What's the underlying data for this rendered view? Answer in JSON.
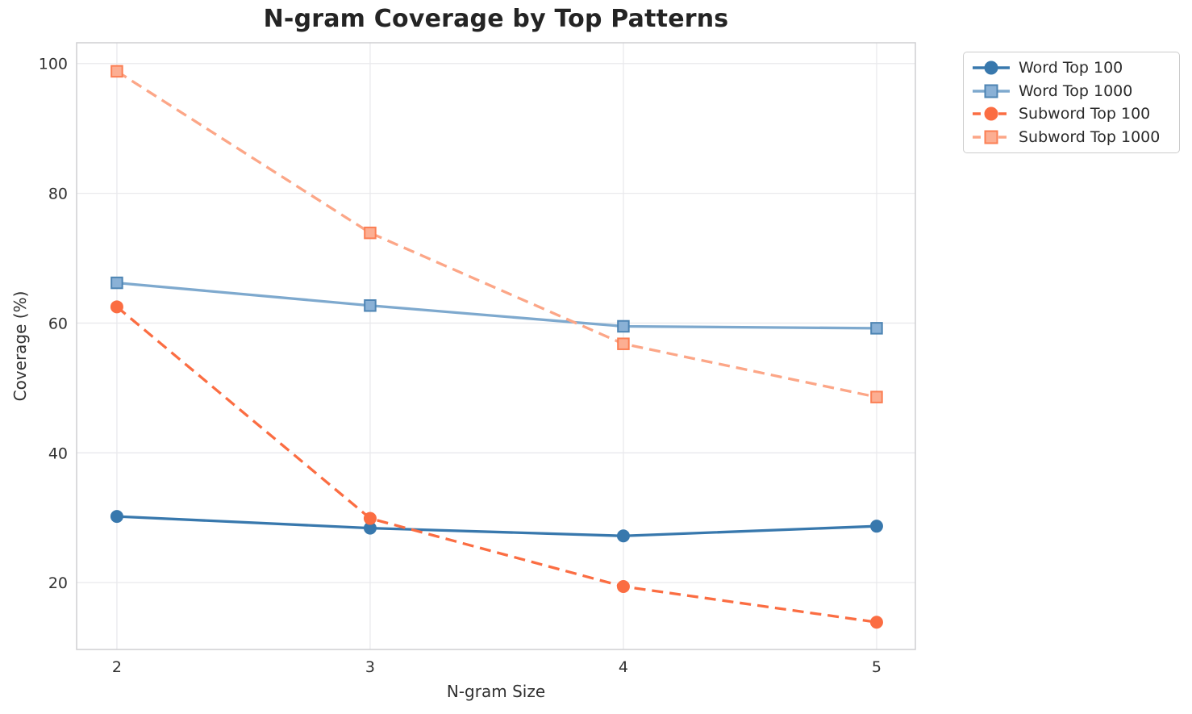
{
  "chart_data": {
    "type": "line",
    "title": "N-gram Coverage by Top Patterns",
    "xlabel": "N-gram Size",
    "ylabel": "Coverage (%)",
    "x": [
      2,
      3,
      4,
      5
    ],
    "x_tick_labels": [
      "2",
      "3",
      "4",
      "5"
    ],
    "y_ticks": [
      20,
      40,
      60,
      80,
      100
    ],
    "y_tick_labels": [
      "20",
      "40",
      "60",
      "80",
      "100"
    ],
    "xlim": [
      1.841,
      5.153
    ],
    "ylim": [
      9.7,
      103.2
    ],
    "grid": true,
    "legend_position": "outside-top-right",
    "series": [
      {
        "name": "Word Top 100",
        "values": [
          30.2,
          28.4,
          27.2,
          28.7
        ],
        "color": "#3878ad",
        "marker": "circle",
        "marker_fill": "#3878ad",
        "marker_edge": "#3878ad",
        "line_style": "solid"
      },
      {
        "name": "Word Top 1000",
        "values": [
          66.2,
          62.7,
          59.5,
          59.2
        ],
        "color": "#7ea9ce",
        "marker": "square",
        "marker_fill": "#8ab1d6",
        "marker_edge": "#4d84b3",
        "line_style": "solid"
      },
      {
        "name": "Subword Top 100",
        "values": [
          62.5,
          29.9,
          19.4,
          13.9
        ],
        "color": "#fb6d42",
        "marker": "circle",
        "marker_fill": "#fb6d42",
        "marker_edge": "#fb6d42",
        "line_style": "dashed"
      },
      {
        "name": "Subword Top 1000",
        "values": [
          98.8,
          73.9,
          56.8,
          48.6
        ],
        "color": "#fca687",
        "marker": "square",
        "marker_fill": "#fcae92",
        "marker_edge": "#fb7e53",
        "line_style": "dashed"
      }
    ]
  },
  "style": {
    "grid_color": "#e9e9ec",
    "spine_color": "#cfcfd2",
    "tick_text_color": "#303030",
    "background": "#ffffff"
  }
}
